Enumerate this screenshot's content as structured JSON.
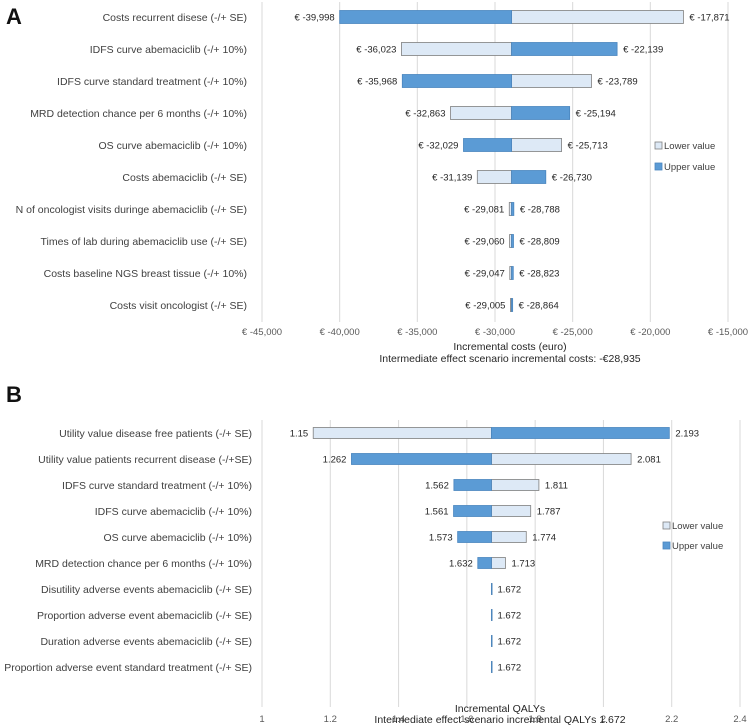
{
  "colors": {
    "lower": "#dde9f6",
    "lower_stroke": "#7f7f7f",
    "upper": "#5b9bd5",
    "upper_stroke": "#4a86bf",
    "grid": "#d9d9d9"
  },
  "chart_data": [
    {
      "panel": "A",
      "type": "bar",
      "subtype": "tornado",
      "xlabel": "Incremental costs (euro)",
      "note": "Intermediate effect scenario incremental costs: -€28,935",
      "base": -28935,
      "xlim": [
        -45000,
        -15000
      ],
      "xticks": [
        -45000,
        -40000,
        -35000,
        -30000,
        -25000,
        -20000,
        -15000
      ],
      "xtick_labels": [
        "€ -45,000",
        "€ -40,000",
        "€ -35,000",
        "€ -30,000",
        "€ -25,000",
        "€ -20,000",
        "€ -15,000"
      ],
      "legend": [
        "Lower value",
        "Upper value"
      ],
      "legend_position": "right",
      "categories": [
        "Costs recurrent disese (-/+ SE)",
        "IDFS curve abemaciclib (-/+ 10%)",
        "IDFS curve standard treatment (-/+ 10%)",
        "MRD detection chance per 6 months (-/+ 10%)",
        "OS curve abemaciclib (-/+ 10%)",
        "Costs abemaciclib (-/+ SE)",
        "N of oncologist visits duringe abemaciclib (-/+ SE)",
        "Times of lab during abemaciclib use (-/+ SE)",
        "Costs baseline NGS breast tissue (-/+ 10%)",
        "Costs visit oncologist (-/+ SE)"
      ],
      "series": [
        {
          "name": "Lower value",
          "values": [
            -17871,
            -36023,
            -23789,
            -32863,
            -25713,
            -31139,
            -29081,
            -29060,
            -29047,
            -29005
          ]
        },
        {
          "name": "Upper value",
          "values": [
            -39998,
            -22139,
            -35968,
            -25194,
            -32029,
            -26730,
            -28788,
            -28809,
            -28823,
            -28864
          ]
        }
      ],
      "left_labels": [
        "€ -39,998",
        "€ -36,023",
        "€ -35,968",
        "€ -32,863",
        "€ -32,029",
        "€ -31,139",
        "€ -29,081",
        "€ -29,060",
        "€ -29,047",
        "€ -29,005"
      ],
      "right_labels": [
        "€ -17,871",
        "€ -22,139",
        "€ -23,789",
        "€ -25,194",
        "€ -25,713",
        "€ -26,730",
        "€ -28,788",
        "€ -28,809",
        "€ -28,823",
        "€ -28,864"
      ]
    },
    {
      "panel": "B",
      "type": "bar",
      "subtype": "tornado",
      "xlabel": "Incremental QALYs",
      "note": "Intermediate effect scenario incremental QALYs 1.672",
      "base": 1.672,
      "xlim": [
        1,
        2.4
      ],
      "xticks": [
        1,
        1.2,
        1.4,
        1.6,
        1.8,
        2,
        2.2,
        2.4
      ],
      "xtick_labels": [
        "1",
        "1.2",
        "1.4",
        "1.6",
        "1.8",
        "2",
        "2.2",
        "2.4"
      ],
      "legend": [
        "Lower value",
        "Upper value"
      ],
      "legend_position": "right",
      "categories": [
        "Utility value disease free patients (-/+ SE)",
        "Utility value patients recurrent disease (-/+SE)",
        "IDFS curve standard treatment (-/+ 10%)",
        "IDFS curve abemaciclib (-/+ 10%)",
        "OS curve abemaciclib (-/+ 10%)",
        "MRD detection chance per 6 months (-/+ 10%)",
        "Disutility adverse events abemaciclib (-/+ SE)",
        "Proportion adverse event abemaciclib (-/+ SE)",
        "Duration adverse events abemaciclib (-/+ SE)",
        "Proportion adverse event standard treatment  (-/+ SE)"
      ],
      "series": [
        {
          "name": "Lower value",
          "values": [
            1.15,
            2.081,
            1.811,
            1.787,
            1.774,
            1.713,
            1.672,
            1.672,
            1.672,
            1.672
          ]
        },
        {
          "name": "Upper value",
          "values": [
            2.193,
            1.262,
            1.562,
            1.561,
            1.573,
            1.632,
            1.672,
            1.672,
            1.672,
            1.672
          ]
        }
      ],
      "left_labels": [
        "1.15",
        "1.262",
        "1.562",
        "1.561",
        "1.573",
        "1.632",
        "",
        "",
        "",
        ""
      ],
      "right_labels": [
        "2.193",
        "2.081",
        "1.811",
        "1.787",
        "1.774",
        "1.713",
        "1.672",
        "1.672",
        "1.672",
        "1.672"
      ]
    }
  ]
}
